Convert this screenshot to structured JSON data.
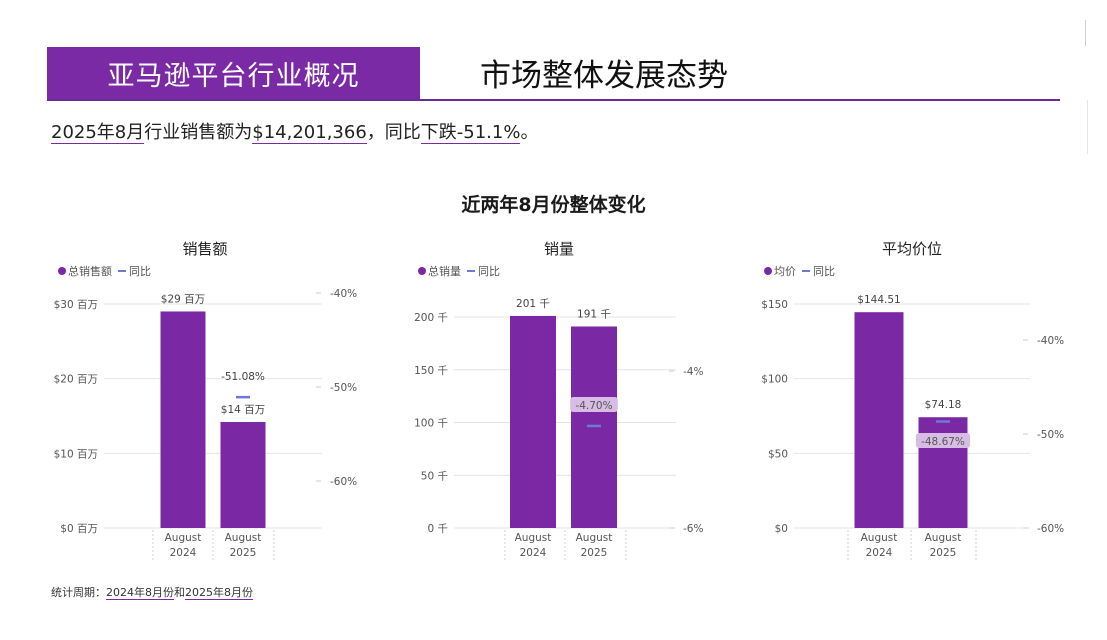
{
  "header": {
    "left_title": "亚马逊平台行业概况",
    "right_title": "市场整体发展态势"
  },
  "summary": {
    "period": "2025年8月",
    "text1": "行业销售额为",
    "amount": "$14,201,366",
    "text2": "，同比",
    "change": "下跌-51.1%",
    "text3": "。"
  },
  "section_title": "近两年8月份整体变化",
  "footer": {
    "prefix": "统计周期：",
    "start": "2024年8月份",
    "mid": "和",
    "end": "2025年8月份"
  },
  "colors": {
    "bar": "#7a28a4",
    "line": "#6f78d8",
    "grid": "#e4e4e4",
    "label_bg": "#d7bde3"
  },
  "chart_data": [
    {
      "type": "bar",
      "title": "销售额",
      "categories": [
        "August 2024",
        "August 2025"
      ],
      "series": [
        {
          "name": "总销售额",
          "values": [
            29,
            14.2
          ],
          "data_labels": [
            "$29 百万",
            "$14 百万"
          ]
        },
        {
          "name": "同比",
          "type": "line",
          "values": [
            null,
            -51.08
          ],
          "data_labels": [
            "",
            "-51.08%"
          ]
        }
      ],
      "y_left": {
        "ticks": [
          0,
          10,
          20,
          30
        ],
        "tick_labels": [
          "$0 百万",
          "$10 百万",
          "$20 百万",
          "$30 百万"
        ]
      },
      "y_right": {
        "ticks": [
          -60,
          -50,
          -40
        ],
        "tick_labels": [
          "-60%",
          "-50%",
          "-40%"
        ]
      },
      "legend_position": "top-left",
      "grid": true
    },
    {
      "type": "bar",
      "title": "销量",
      "categories": [
        "August 2024",
        "August 2025"
      ],
      "series": [
        {
          "name": "总销量",
          "values": [
            201,
            191
          ],
          "data_labels": [
            "201 千",
            "191 千"
          ]
        },
        {
          "name": "同比",
          "type": "line",
          "values": [
            null,
            -4.7
          ],
          "data_labels": [
            "",
            "-4.70%"
          ]
        }
      ],
      "y_left": {
        "ticks": [
          0,
          50,
          100,
          150,
          200
        ],
        "tick_labels": [
          "0 千",
          "50 千",
          "100 千",
          "150 千",
          "200 千"
        ]
      },
      "y_right": {
        "ticks": [
          -6,
          -4
        ],
        "tick_labels": [
          "-6%",
          "-4%"
        ]
      },
      "legend_position": "top-left",
      "grid": true
    },
    {
      "type": "bar",
      "title": "平均价位",
      "categories": [
        "August 2024",
        "August 2025"
      ],
      "series": [
        {
          "name": "均价",
          "values": [
            144.51,
            74.18
          ],
          "data_labels": [
            "$144.51",
            "$74.18"
          ]
        },
        {
          "name": "同比",
          "type": "line",
          "values": [
            null,
            -48.67
          ],
          "data_labels": [
            "",
            "-48.67%"
          ]
        }
      ],
      "y_left": {
        "ticks": [
          0,
          50,
          100,
          150
        ],
        "tick_labels": [
          "$0",
          "$50",
          "$100",
          "$150"
        ]
      },
      "y_right": {
        "ticks": [
          -60,
          -50,
          -40
        ],
        "tick_labels": [
          "-60%",
          "-50%",
          "-40%"
        ]
      },
      "legend_position": "top-left",
      "grid": true
    }
  ]
}
